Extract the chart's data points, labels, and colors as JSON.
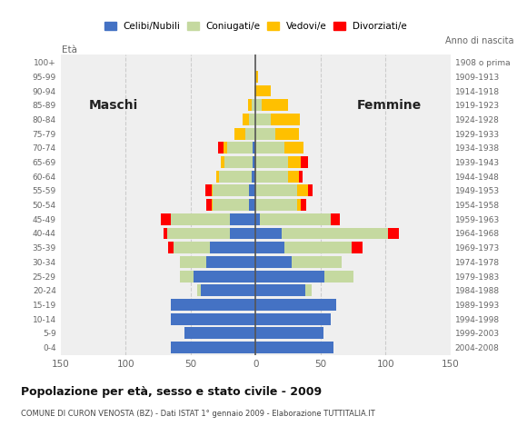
{
  "age_groups": [
    "0-4",
    "5-9",
    "10-14",
    "15-19",
    "20-24",
    "25-29",
    "30-34",
    "35-39",
    "40-44",
    "45-49",
    "50-54",
    "55-59",
    "60-64",
    "65-69",
    "70-74",
    "75-79",
    "80-84",
    "85-89",
    "90-94",
    "95-99",
    "100+"
  ],
  "birth_years": [
    "2004-2008",
    "1999-2003",
    "1994-1998",
    "1989-1993",
    "1984-1988",
    "1979-1983",
    "1974-1978",
    "1969-1973",
    "1964-1968",
    "1959-1963",
    "1954-1958",
    "1949-1953",
    "1944-1948",
    "1939-1943",
    "1934-1938",
    "1929-1933",
    "1924-1928",
    "1919-1923",
    "1914-1918",
    "1909-1913",
    "1908 o prima"
  ],
  "males": {
    "celibe": [
      65,
      55,
      65,
      65,
      42,
      48,
      38,
      35,
      20,
      20,
      5,
      5,
      3,
      2,
      2,
      0,
      0,
      0,
      0,
      0,
      0
    ],
    "coniugato": [
      0,
      0,
      0,
      0,
      3,
      10,
      20,
      28,
      48,
      45,
      28,
      28,
      25,
      22,
      20,
      8,
      5,
      3,
      0,
      0,
      0
    ],
    "vedovo": [
      0,
      0,
      0,
      0,
      0,
      0,
      0,
      0,
      0,
      0,
      1,
      1,
      2,
      3,
      3,
      8,
      5,
      3,
      1,
      0,
      0
    ],
    "divorziato": [
      0,
      0,
      0,
      0,
      0,
      0,
      0,
      4,
      3,
      8,
      4,
      5,
      0,
      0,
      4,
      0,
      0,
      0,
      0,
      0,
      0
    ]
  },
  "females": {
    "celibe": [
      60,
      52,
      58,
      62,
      38,
      53,
      28,
      22,
      20,
      3,
      0,
      0,
      0,
      0,
      0,
      0,
      0,
      0,
      0,
      0,
      0
    ],
    "coniugato": [
      0,
      0,
      0,
      0,
      5,
      22,
      38,
      52,
      82,
      55,
      32,
      32,
      25,
      25,
      22,
      15,
      12,
      5,
      0,
      0,
      0
    ],
    "vedovo": [
      0,
      0,
      0,
      0,
      0,
      0,
      0,
      0,
      0,
      0,
      3,
      8,
      8,
      10,
      15,
      18,
      22,
      20,
      12,
      2,
      0
    ],
    "divorziato": [
      0,
      0,
      0,
      0,
      0,
      0,
      0,
      8,
      8,
      7,
      4,
      4,
      3,
      5,
      0,
      0,
      0,
      0,
      0,
      0,
      0
    ]
  },
  "colors": {
    "celibe": "#4472c4",
    "coniugato": "#c5d9a0",
    "vedovo": "#ffc000",
    "divorziato": "#ff0000"
  },
  "xlim": 150,
  "title": "Popolazione per età, sesso e stato civile - 2009",
  "subtitle": "COMUNE DI CURON VENOSTA (BZ) - Dati ISTAT 1° gennaio 2009 - Elaborazione TUTTITALIA.IT",
  "xlabel_left": "Maschi",
  "xlabel_right": "Femmine",
  "ylabel_left": "Età",
  "ylabel_right": "Anno di nascita",
  "legend_labels": [
    "Celibi/Nubili",
    "Coniugati/e",
    "Vedovi/e",
    "Divorziati/e"
  ],
  "background_color": "#ffffff",
  "plot_bg_color": "#efefef"
}
